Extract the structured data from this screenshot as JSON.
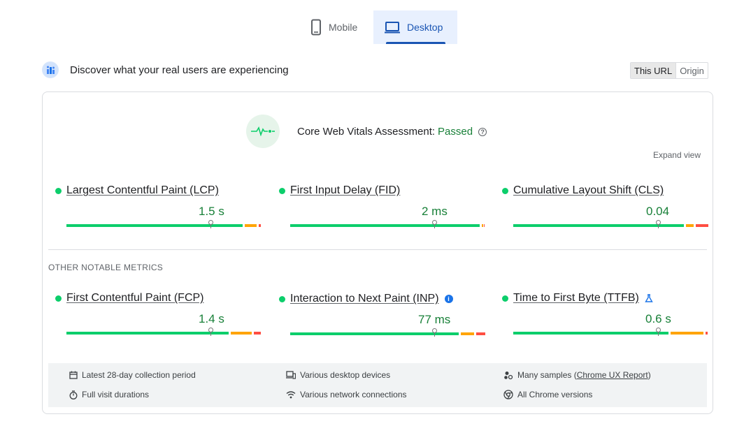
{
  "tabs": [
    {
      "label": "Mobile",
      "icon": "phone-icon"
    },
    {
      "label": "Desktop",
      "icon": "laptop-icon",
      "active": true
    }
  ],
  "discover": {
    "text": "Discover what your real users are experiencing"
  },
  "url_toggle": {
    "this_url": "This URL",
    "origin": "Origin"
  },
  "assessment": {
    "label": "Core Web Vitals Assessment:",
    "status": "Passed",
    "expand": "Expand view"
  },
  "core_metrics": [
    {
      "name": "Largest Contentful Paint (LCP)",
      "value": "1.5 s"
    },
    {
      "name": "First Input Delay (FID)",
      "value": "2 ms"
    },
    {
      "name": "Cumulative Layout Shift (CLS)",
      "value": "0.04"
    }
  ],
  "other_label": "OTHER NOTABLE METRICS",
  "other_metrics": [
    {
      "name": "First Contentful Paint (FCP)",
      "value": "1.4 s"
    },
    {
      "name": "Interaction to Next Paint (INP)",
      "value": "77 ms"
    },
    {
      "name": "Time to First Byte (TTFB)",
      "value": "0.6 s"
    }
  ],
  "footer": {
    "period": "Latest 28-day collection period",
    "devices": "Various desktop devices",
    "samples_prefix": "Many samples (",
    "samples_link": "Chrome UX Report",
    "samples_suffix": ")",
    "durations": "Full visit durations",
    "network": "Various network connections",
    "versions": "All Chrome versions"
  },
  "colors": {
    "good": "#0cce6b",
    "average": "#ffa400",
    "poor": "#ff4e42",
    "accent": "#1a55b3",
    "passed": "#188038"
  }
}
